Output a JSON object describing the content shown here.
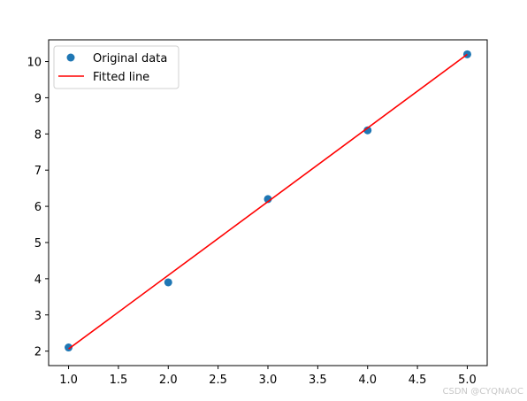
{
  "colors": {
    "points": "#1f77b4",
    "fitted_line": "#ff0000",
    "axes": "#000000",
    "background": "#ffffff"
  },
  "watermark": "CSDN @CYQNAOC",
  "chart_data": {
    "type": "scatter",
    "title": "",
    "xlabel": "",
    "ylabel": "",
    "xlim": [
      0.8,
      5.2
    ],
    "ylim": [
      1.6,
      10.6
    ],
    "x_ticks": [
      1.0,
      1.5,
      2.0,
      2.5,
      3.0,
      3.5,
      4.0,
      4.5,
      5.0
    ],
    "x_tick_labels": [
      "1.0",
      "1.5",
      "2.0",
      "2.5",
      "3.0",
      "3.5",
      "4.0",
      "4.5",
      "5.0"
    ],
    "y_ticks": [
      2,
      3,
      4,
      5,
      6,
      7,
      8,
      9,
      10
    ],
    "y_tick_labels": [
      "2",
      "3",
      "4",
      "5",
      "6",
      "7",
      "8",
      "9",
      "10"
    ],
    "grid": false,
    "legend": {
      "position": "top-left"
    },
    "series": [
      {
        "name": "Original data",
        "kind": "scatter",
        "color": "#1f77b4",
        "x": [
          1,
          2,
          3,
          4,
          5
        ],
        "y": [
          2.1,
          3.9,
          6.2,
          8.1,
          10.2
        ]
      },
      {
        "name": "Fitted line",
        "kind": "line",
        "color": "#ff0000",
        "x": [
          1,
          5
        ],
        "y": [
          2.06,
          10.2
        ]
      }
    ]
  }
}
